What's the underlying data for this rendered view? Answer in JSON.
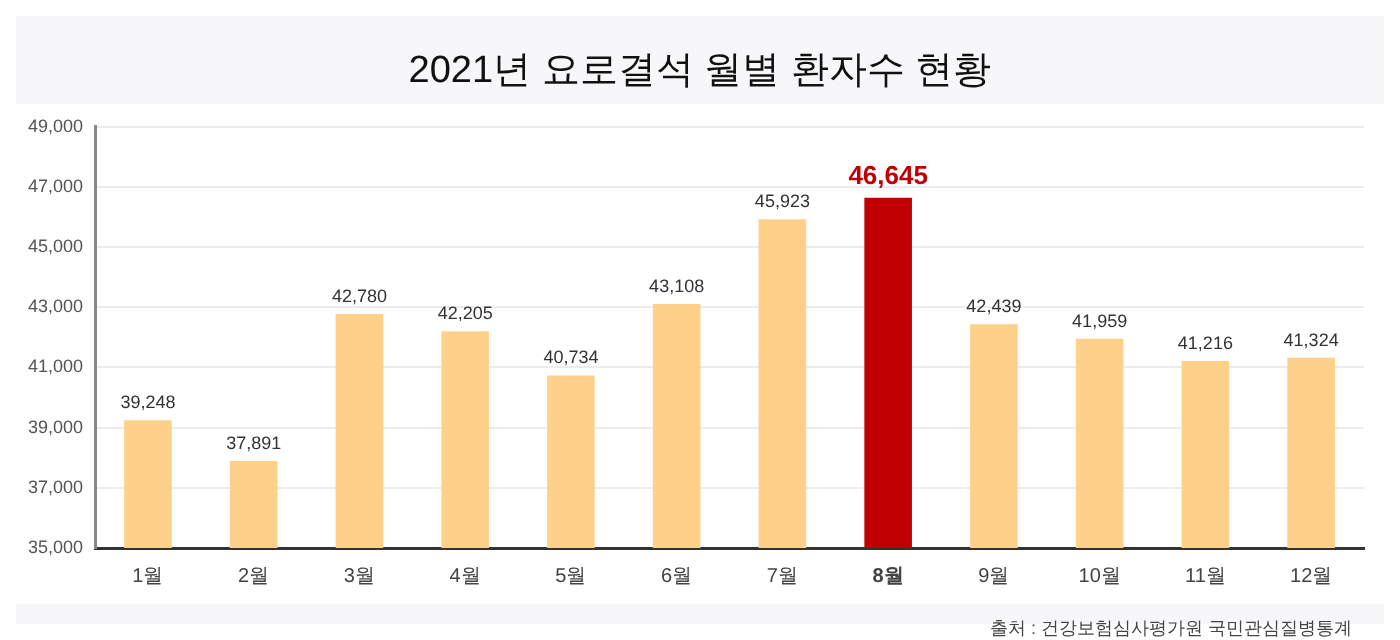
{
  "chart_data": {
    "type": "bar",
    "title": "2021년 요로결석 월별 환자수 현황",
    "categories": [
      "1월",
      "2월",
      "3월",
      "4월",
      "5월",
      "6월",
      "7월",
      "8월",
      "9월",
      "10월",
      "11월",
      "12월"
    ],
    "values": [
      39248,
      37891,
      42780,
      42205,
      40734,
      43108,
      45923,
      46645,
      42439,
      41959,
      41216,
      41324
    ],
    "colors": [
      "#ffd08a",
      "#ffd08a",
      "#ffd08a",
      "#ffd08a",
      "#ffd08a",
      "#ffd08a",
      "#ffd08a",
      "#c00000",
      "#ffd08a",
      "#ffd08a",
      "#ffd08a",
      "#ffd08a"
    ],
    "value_labels": [
      "39,248",
      "37,891",
      "42,780",
      "42,205",
      "40,734",
      "43,108",
      "45,923",
      "46,645",
      "42,439",
      "41,959",
      "41,216",
      "41,324"
    ],
    "ylim": [
      35000,
      49000
    ],
    "yticks": [
      {
        "value": 35000,
        "label": "35,000"
      },
      {
        "value": 37000,
        "label": "37,000"
      },
      {
        "value": 39000,
        "label": "39,000"
      },
      {
        "value": 41000,
        "label": "41,000"
      },
      {
        "value": 43000,
        "label": "43,000"
      },
      {
        "value": 45000,
        "label": "45,000"
      },
      {
        "value": 47000,
        "label": "47,000"
      },
      {
        "value": 49000,
        "label": "49,000"
      }
    ],
    "grid": "y",
    "legend": false,
    "annotations": [
      "출처 : 건강보험심사평가원 국민관심질병통계"
    ]
  }
}
